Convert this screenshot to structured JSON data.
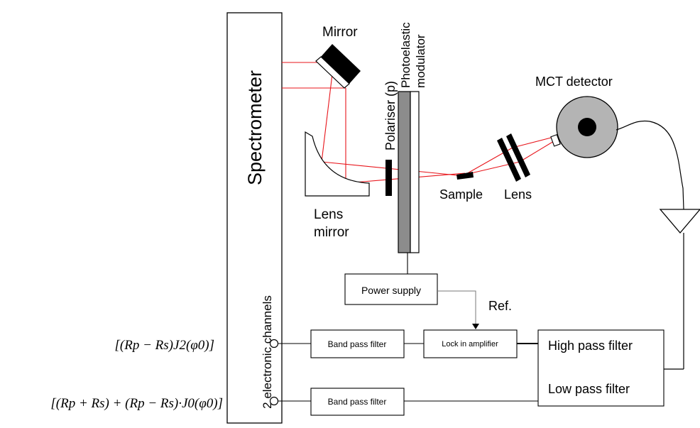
{
  "diagram": {
    "colors": {
      "beam": "#e8151b",
      "outline": "#000000",
      "modulator_fill": "#8c8c8c",
      "detector_fill": "#b4b4b4"
    },
    "labels": {
      "spectrometer": "Spectrometer",
      "electronic_channels": "2 electronic channels",
      "mirror": "Mirror",
      "photoelastic": "Photoelastic",
      "modulator": "modulator",
      "polariser": "Polariser (p)",
      "mct_detector": "MCT detector",
      "lens_mirror_1": "Lens",
      "lens_mirror_2": "mirror",
      "sample": "Sample",
      "lens": "Lens",
      "power_supply": "Power supply",
      "ref": "Ref.",
      "band_pass_top": "Band pass filter",
      "lock_in": "Lock in amplifier",
      "high_pass": "High pass filter",
      "low_pass": "Low pass filter",
      "band_pass_bottom": "Band pass filter"
    },
    "equations": {
      "top": "[(Rp − Rs)J2(φ0)]",
      "bottom": "[(Rp + Rs) + (Rp − Rs)·J0(φ0)]"
    }
  }
}
